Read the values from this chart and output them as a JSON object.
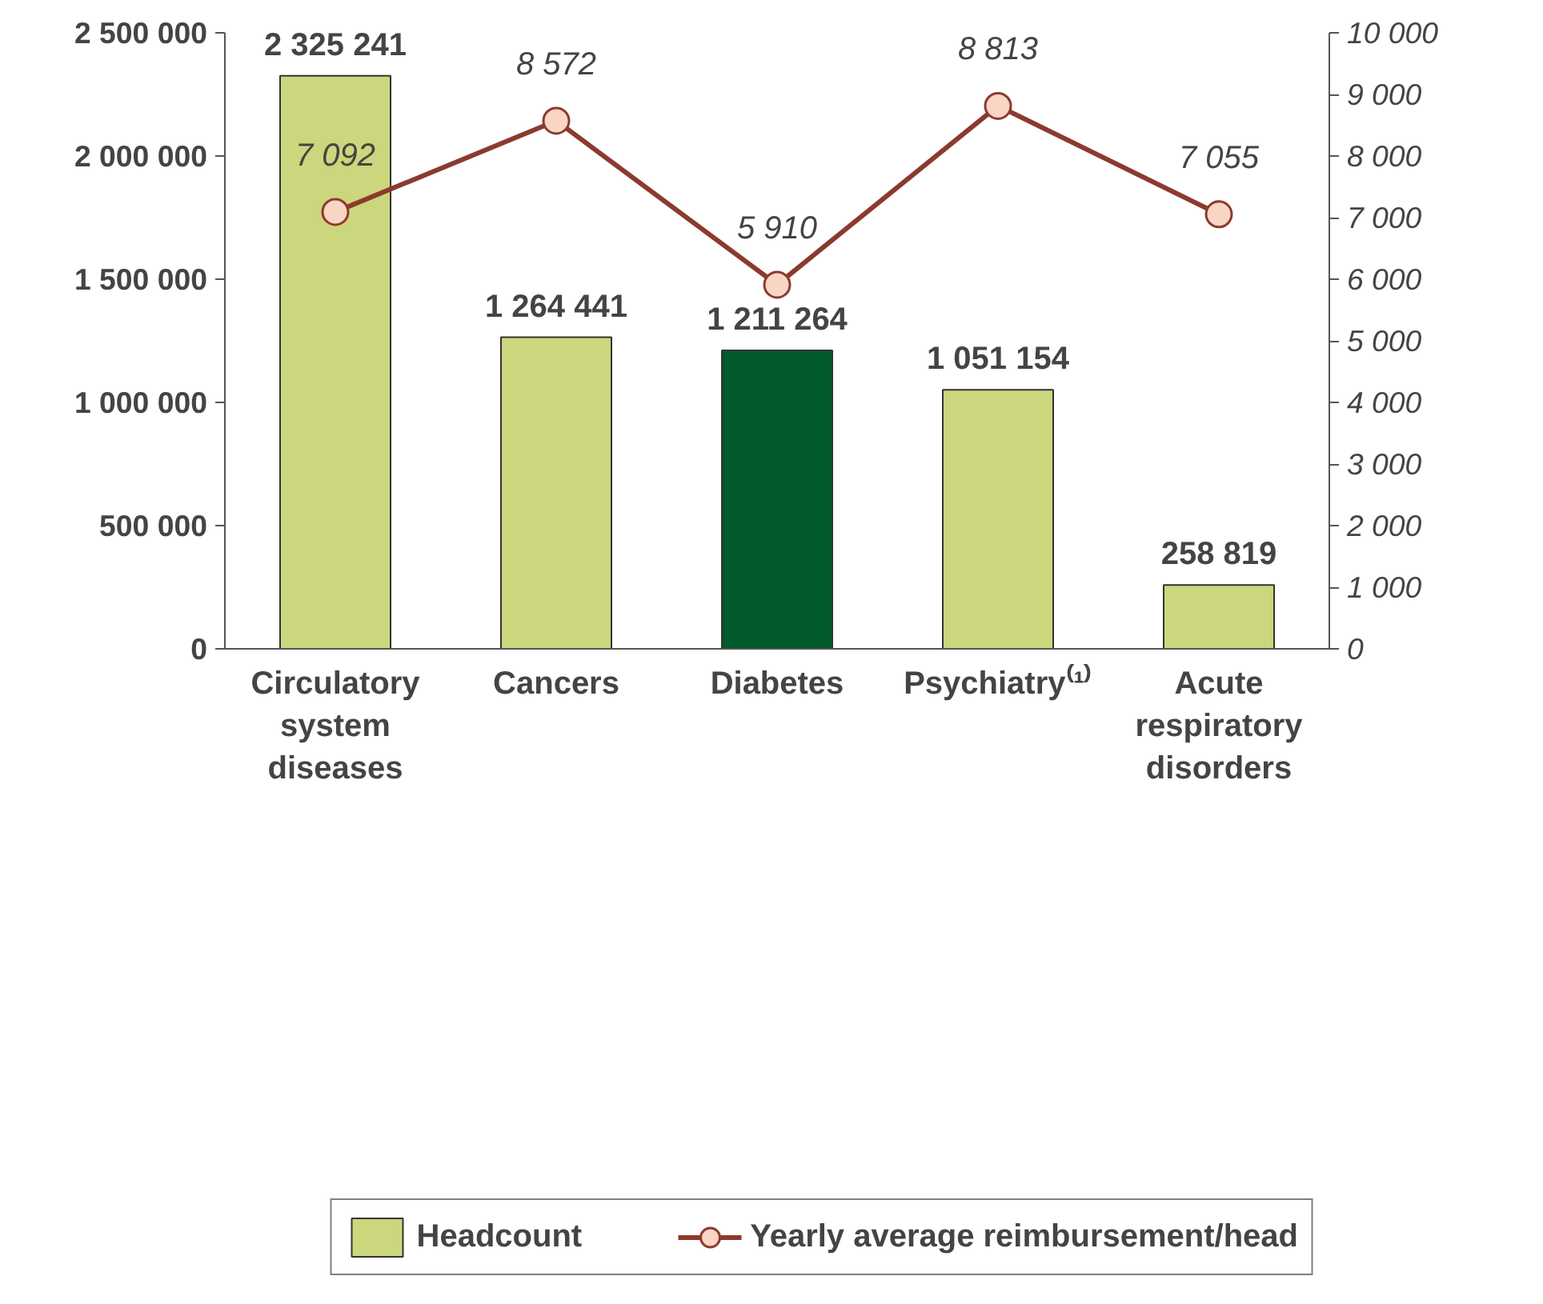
{
  "chart_data": {
    "type": "bar",
    "categories": [
      "Circulatory system diseases",
      "Cancers",
      "Diabetes",
      "Psychiatry⁽¹⁾",
      "Acute respiratory disorders"
    ],
    "series": [
      {
        "name": "Headcount",
        "color": "#ccd67c",
        "colors": [
          "#ccd67c",
          "#ccd67c",
          "#005a2b",
          "#ccd67c",
          "#ccd67c"
        ],
        "values": [
          2325241,
          1264441,
          1211264,
          1051154,
          258819
        ]
      },
      {
        "name": "Yearly average reimbursement/head",
        "type": "line",
        "axis": "y2",
        "color": "#8b3a2e",
        "marker": "circle",
        "line_style": "solid",
        "values": [
          7092,
          8572,
          5910,
          8813,
          7055
        ]
      }
    ],
    "ylim": [
      0,
      2500000
    ],
    "yticks": [
      0,
      {
        "value": 500000,
        "label": "500 000"
      },
      {
        "value": 1000000,
        "label": "1 000 000"
      },
      {
        "value": 1500000,
        "label": "1 500 000"
      },
      {
        "value": 2000000,
        "label": "2 000 000"
      },
      {
        "value": 2500000,
        "label": "2 500 000"
      }
    ],
    "y2lim": [
      0,
      10000
    ],
    "y2ticks": [
      0,
      {
        "value": 1000,
        "label": "1 000"
      },
      {
        "value": 2000,
        "label": "2 000"
      },
      {
        "value": 3000,
        "label": "3 000"
      },
      {
        "value": 4000,
        "label": "4 000"
      },
      {
        "value": 5000,
        "label": "5 000"
      },
      {
        "value": 6000,
        "label": "6 000"
      },
      {
        "value": 7000,
        "label": "7 000"
      },
      {
        "value": 8000,
        "label": "8 000"
      },
      {
        "value": 9000,
        "label": "9 000"
      },
      {
        "value": 10000,
        "label": "10 000"
      }
    ],
    "data_labels": true,
    "grid": false,
    "legend": "bottom"
  }
}
